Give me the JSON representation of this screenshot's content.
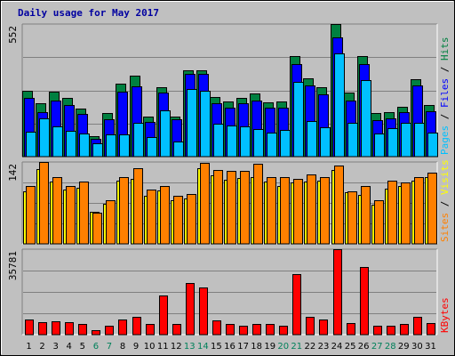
{
  "chart_data": {
    "type": "bar",
    "title": "Daily usage for May 2017",
    "days": [
      "1",
      "2",
      "3",
      "4",
      "5",
      "6",
      "7",
      "8",
      "9",
      "10",
      "11",
      "12",
      "13",
      "14",
      "15",
      "16",
      "17",
      "18",
      "19",
      "20",
      "21",
      "22",
      "23",
      "24",
      "25",
      "26",
      "27",
      "28",
      "29",
      "30",
      "31"
    ],
    "weekend_days": [
      "6",
      "7",
      "13",
      "14",
      "20",
      "21",
      "27",
      "28"
    ],
    "panels": [
      {
        "ymax_label": "552",
        "ymax": 552,
        "label_parts": [
          "Pages",
          "Files",
          "Hits"
        ],
        "series": [
          {
            "name": "Hits",
            "color": "#008040",
            "values": [
              275,
              223,
              270,
              245,
              200,
              86,
              180,
              302,
              336,
              166,
              290,
              168,
              360,
              359,
              248,
              230,
              245,
              262,
              225,
              228,
              419,
              325,
              288,
              552,
              265,
              419,
              180,
              186,
              209,
              322,
              215
            ]
          },
          {
            "name": "Files",
            "color": "#0000ff",
            "values": [
              243,
              186,
              234,
              214,
              176,
              75,
              154,
              271,
              294,
              144,
              266,
              156,
              346,
              344,
              221,
              204,
              221,
              233,
              202,
              202,
              385,
              296,
              260,
              497,
              234,
              386,
              151,
              161,
              184,
              296,
              190
            ]
          },
          {
            "name": "Pages",
            "color": "#00c0ff",
            "values": [
              104,
              159,
              126,
              109,
              97,
              57,
              91,
              93,
              141,
              81,
              193,
              62,
              280,
              276,
              137,
              128,
              127,
              116,
              100,
              111,
              310,
              147,
              122,
              429,
              140,
              318,
              96,
              118,
              141,
              140,
              100
            ]
          }
        ]
      },
      {
        "ymax_label": "142",
        "ymax": 142,
        "label_parts": [
          "Sites",
          "Visits"
        ],
        "series": [
          {
            "name": "Visits",
            "color": "#ffff00",
            "values": [
              91,
              129,
              108,
              94,
              98,
              55,
              70,
              109,
              113,
              84,
              92,
              76,
              79,
              131,
              119,
              111,
              114,
              115,
              108,
              101,
              106,
              108,
              109,
              128,
              90,
              85,
              68,
              96,
              100,
              109,
              116
            ]
          },
          {
            "name": "Sites",
            "color": "#ff8000",
            "values": [
              101,
              142,
              115,
              101,
              108,
              54,
              75,
              116,
              131,
              94,
              100,
              84,
              86,
              141,
              128,
              127,
              127,
              139,
              115,
              116,
              112,
              121,
              116,
              136,
              91,
              100,
              76,
              109,
              107,
              116,
              124
            ]
          }
        ]
      },
      {
        "ymax_label": "35781",
        "ymax": 35781,
        "label_parts": [
          "KBytes"
        ],
        "series": [
          {
            "name": "KBytes",
            "color": "#ff0000",
            "values": [
              6400,
              5300,
              5600,
              5300,
              4600,
              1900,
              3600,
              6200,
              7300,
              4300,
              16500,
              4300,
              21800,
              19800,
              5900,
              4300,
              3900,
              4600,
              4300,
              3600,
              25500,
              7600,
              6400,
              35781,
              4700,
              28300,
              3800,
              3900,
              4400,
              7300,
              4700
            ]
          }
        ]
      }
    ]
  }
}
